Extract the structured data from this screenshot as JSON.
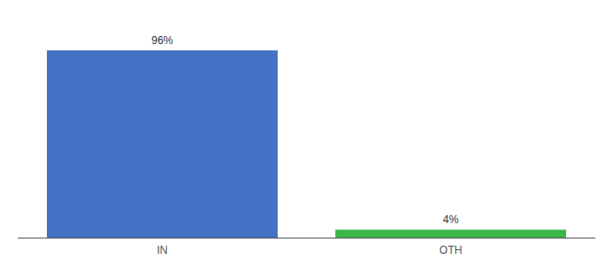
{
  "chart_data": {
    "type": "bar",
    "categories": [
      "IN",
      "OTH"
    ],
    "values": [
      96,
      4
    ],
    "value_labels": [
      "96%",
      "4%"
    ],
    "colors": [
      "#4472c4",
      "#3cb54a"
    ],
    "ylim": [
      0,
      108
    ],
    "data_labels": true,
    "tick_labels": "x",
    "grid": false
  }
}
